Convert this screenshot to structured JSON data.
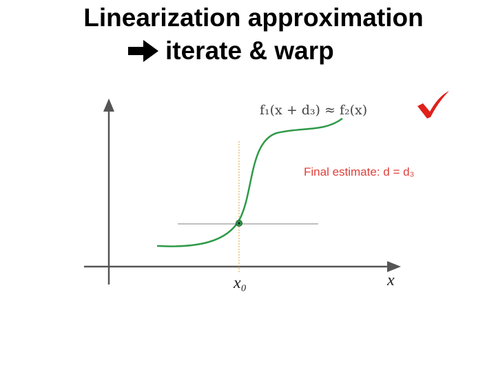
{
  "title": {
    "line1": "Linearization approximation",
    "line2": "iterate & warp"
  },
  "diagram": {
    "curve_label": "f₁(x + d₃) ≈ f₂(x)",
    "estimate_label": "Final estimate: d = d₃",
    "x0_label": "x₀",
    "x_label": "x"
  }
}
